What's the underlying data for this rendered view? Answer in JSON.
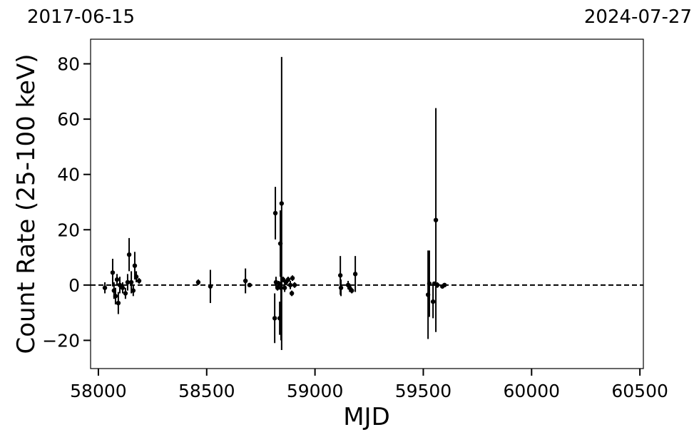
{
  "chart_data": {
    "type": "errorbar",
    "corner_labels": [
      "2017-06-15",
      "2024-07-27"
    ],
    "xlabel": "MJD",
    "ylabel": "Count Rate (25-100 keV)",
    "x": [
      58030,
      58066,
      58072,
      58079,
      58086,
      58092,
      58099,
      58112,
      58125,
      58135,
      58142,
      58152,
      58161,
      58168,
      58175,
      58188,
      58461,
      58517,
      58679,
      58698,
      58814,
      58817,
      58820,
      58827,
      58833,
      58837,
      58840,
      58843,
      58846,
      58853,
      58860,
      58866,
      58876,
      58886,
      58893,
      58896,
      58906,
      59117,
      59120,
      59153,
      59160,
      59170,
      59186,
      59522,
      59528,
      59545,
      59551,
      59558,
      59565,
      59588,
      59598
    ],
    "values": [
      -1,
      4.5,
      -2,
      -4,
      2,
      -6.5,
      0,
      -1,
      -3,
      1,
      11,
      1,
      -2,
      7,
      3,
      1.5,
      1,
      -0.5,
      1.5,
      0,
      -12,
      26,
      1,
      -1,
      0.5,
      -12,
      15,
      -1,
      29.5,
      2,
      -1,
      1,
      2,
      0,
      -3,
      2.5,
      0,
      3.5,
      -1,
      0,
      -1,
      -2,
      4,
      -3.5,
      0.5,
      -6,
      0.5,
      23.5,
      0,
      -0.5,
      0
    ],
    "errors": [
      2,
      5,
      3,
      3,
      2,
      4,
      3,
      2,
      2,
      3,
      6,
      4,
      2,
      5,
      2,
      1,
      1,
      6,
      4.5,
      0.5,
      9,
      9.5,
      2,
      1,
      1,
      6,
      12,
      19,
      53,
      1,
      1.5,
      1,
      1,
      1.5,
      1,
      1,
      1,
      7,
      3,
      1.5,
      1.5,
      1,
      6.5,
      16,
      12,
      6,
      0.5,
      40.5,
      1,
      0.5,
      0.5
    ],
    "color": "#000000",
    "hline": 0,
    "xlim": [
      57964,
      60516
    ],
    "ylim": [
      -30.2,
      88.9
    ],
    "xticks": [
      58000,
      58500,
      59000,
      59500,
      60000,
      60500
    ],
    "yticks": [
      {
        "value": -20,
        "label": "−20"
      },
      0,
      20,
      40,
      60,
      80
    ]
  }
}
